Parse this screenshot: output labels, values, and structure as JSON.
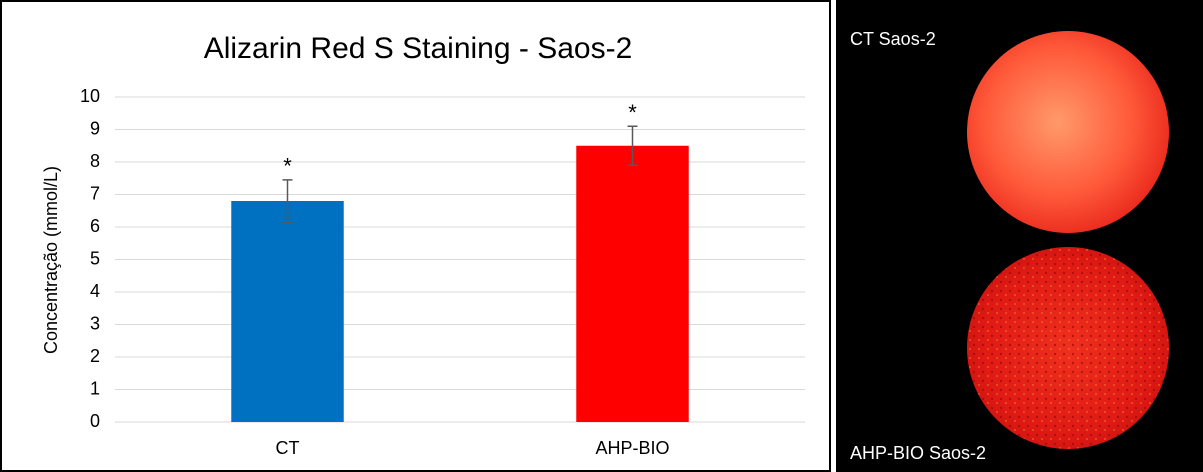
{
  "chart_data": {
    "type": "bar",
    "title": "Alizarin Red S Staining - Saos-2",
    "y_label": "Concentração (mmol/L)",
    "categories": [
      "CT",
      "AHP-BIO"
    ],
    "values": [
      6.8,
      8.5
    ],
    "errors": [
      0.65,
      0.6
    ],
    "colors": [
      "#0070c0",
      "#ff0000"
    ],
    "annotations": [
      "*",
      "*"
    ],
    "ylim": [
      0,
      10
    ],
    "yticks": [
      0,
      1,
      2,
      3,
      4,
      5,
      6,
      7,
      8,
      9,
      10
    ],
    "grid": true
  },
  "images": [
    {
      "label": "CT Saos-2"
    },
    {
      "label": "AHP-BIO Saos-2"
    }
  ]
}
